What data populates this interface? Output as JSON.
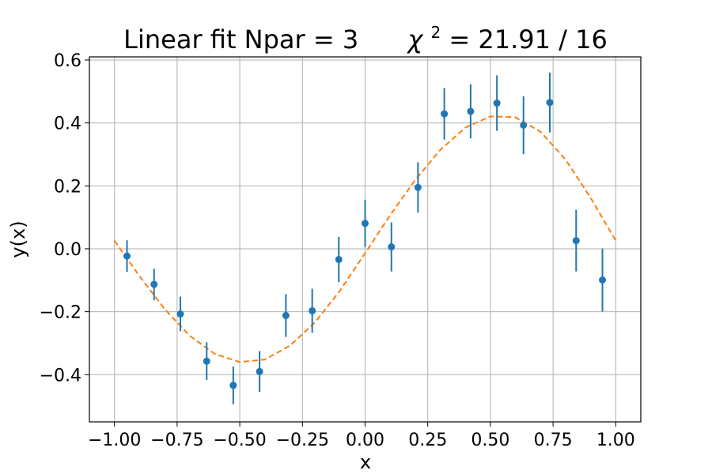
{
  "chart_data": {
    "type": "scatter",
    "title_prefix": "Linear fit  Npar = 3",
    "title_chi_symbol": "χ",
    "title_chi_sup": "2",
    "title_chi_value": " = 21.91 / 16",
    "xlabel": "x",
    "ylabel": "y(x)",
    "xlim": [
      -1.1,
      1.1
    ],
    "ylim": [
      -0.55,
      0.61
    ],
    "grid": true,
    "x_ticks": [
      -1.0,
      -0.75,
      -0.5,
      -0.25,
      0.0,
      0.25,
      0.5,
      0.75,
      1.0
    ],
    "x_tick_labels": [
      "−1.00",
      "−0.75",
      "−0.50",
      "−0.25",
      "0.00",
      "0.25",
      "0.50",
      "0.75",
      "1.00"
    ],
    "y_ticks": [
      -0.4,
      -0.2,
      0.0,
      0.2,
      0.4,
      0.6
    ],
    "y_tick_labels": [
      "−0.4",
      "−0.2",
      "0.0",
      "0.2",
      "0.4",
      "0.6"
    ],
    "series": [
      {
        "kind": "errorbar",
        "color": "#1f77b4",
        "x": [
          -0.95,
          -0.842,
          -0.737,
          -0.632,
          -0.526,
          -0.421,
          -0.316,
          -0.211,
          -0.105,
          0.0,
          0.105,
          0.211,
          0.316,
          0.421,
          0.526,
          0.632,
          0.737,
          0.842,
          0.947
        ],
        "y": [
          -0.023,
          -0.113,
          -0.207,
          -0.357,
          -0.434,
          -0.39,
          -0.212,
          -0.197,
          -0.034,
          0.081,
          0.006,
          0.195,
          0.429,
          0.437,
          0.463,
          0.393,
          0.465,
          0.026,
          -0.099
        ],
        "yerr": [
          0.05,
          0.05,
          0.055,
          0.06,
          0.06,
          0.065,
          0.068,
          0.07,
          0.072,
          0.075,
          0.078,
          0.08,
          0.082,
          0.086,
          0.088,
          0.092,
          0.095,
          0.098,
          0.1
        ]
      },
      {
        "kind": "fit-curve",
        "color": "#ff7f0e",
        "style": "dashed",
        "x": [
          -1.0,
          -0.9,
          -0.8,
          -0.7,
          -0.6,
          -0.5,
          -0.4,
          -0.3,
          -0.2,
          -0.1,
          0.0,
          0.1,
          0.2,
          0.3,
          0.4,
          0.5,
          0.6,
          0.7,
          0.8,
          0.9,
          1.0
        ],
        "y": [
          0.026,
          -0.087,
          -0.191,
          -0.276,
          -0.334,
          -0.36,
          -0.352,
          -0.308,
          -0.234,
          -0.133,
          -0.014,
          0.107,
          0.219,
          0.314,
          0.385,
          0.421,
          0.418,
          0.372,
          0.283,
          0.162,
          0.026
        ]
      }
    ]
  }
}
